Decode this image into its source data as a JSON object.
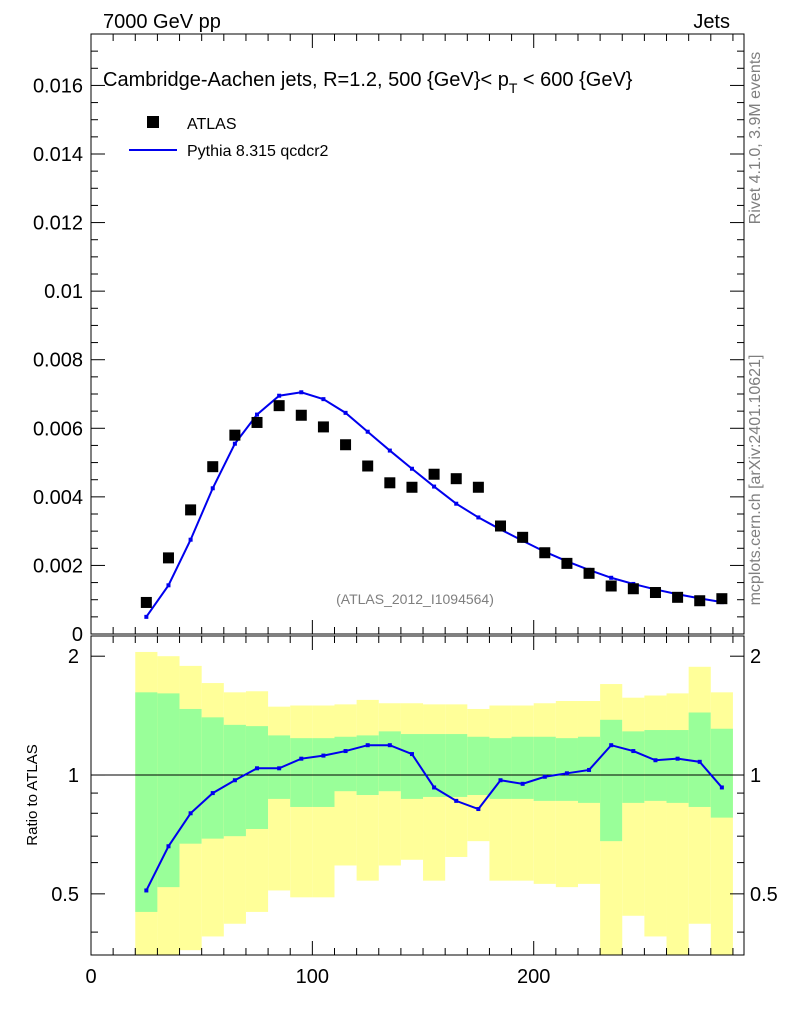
{
  "header": {
    "left": "7000 GeV pp",
    "right": "Jets"
  },
  "side": {
    "rivet": "Rivet 4.1.0,  3.9M events",
    "mcplots": "mcplots.cern.ch [arXiv:2401.10621]"
  },
  "colors": {
    "data": "#000000",
    "mc": "#0000ee",
    "band_inner": "#99ff99",
    "band_outer": "#ffff99"
  },
  "chart_data": {
    "type": "line",
    "title_main": "Cambridge-Aachen jets, R=1.2, 500 {GeV}< p",
    "title_sub": "T",
    "title_end": " < 600 {GeV}",
    "watermark": "(ATLAS_2012_I1094564)",
    "legend": {
      "data": "ATLAS",
      "mc": "Pythia 8.315 qcdcr2",
      "position": "top-left"
    },
    "xlim": [
      0,
      295
    ],
    "ylim": [
      0,
      0.0175
    ],
    "ytick_values": [
      0,
      0.002,
      0.004,
      0.006,
      0.008,
      0.01,
      0.012,
      0.014,
      0.016
    ],
    "ytick_labels": [
      "0",
      "0.002",
      "0.004",
      "0.006",
      "0.008",
      "0.01",
      "0.012",
      "0.014",
      "0.016"
    ],
    "xtick_values": [
      0,
      100,
      200
    ],
    "xtick_labels": [
      "0",
      "100",
      "200"
    ],
    "ratio": {
      "ylabel": "Ratio to ATLAS",
      "ylim": [
        0.35,
        2.25
      ],
      "ytick_values": [
        0.5,
        1,
        2
      ],
      "ytick_labels": [
        "0.5",
        "1",
        "2"
      ]
    },
    "x": [
      25,
      35,
      45,
      55,
      65,
      75,
      85,
      95,
      105,
      115,
      125,
      135,
      145,
      155,
      165,
      175,
      185,
      195,
      205,
      215,
      225,
      235,
      245,
      255,
      265,
      275,
      285
    ],
    "series": [
      {
        "name": "ATLAS",
        "values": [
          0.00092,
          0.00222,
          0.00362,
          0.00488,
          0.0058,
          0.00617,
          0.00666,
          0.00638,
          0.00604,
          0.00552,
          0.0049,
          0.00441,
          0.00428,
          0.00466,
          0.00453,
          0.00428,
          0.00315,
          0.00282,
          0.00237,
          0.00206,
          0.00177,
          0.0014,
          0.00132,
          0.00121,
          0.00107,
          0.00097,
          0.00103
        ]
      },
      {
        "name": "Pythia 8.315 qcdcr2",
        "values": [
          0.0005,
          0.00142,
          0.00275,
          0.00425,
          0.00555,
          0.0064,
          0.00695,
          0.00705,
          0.00685,
          0.00645,
          0.0059,
          0.00535,
          0.00482,
          0.0043,
          0.0038,
          0.0034,
          0.00305,
          0.00272,
          0.0024,
          0.00212,
          0.00187,
          0.00164,
          0.00146,
          0.0013,
          0.00116,
          0.00104,
          0.00093
        ]
      }
    ],
    "ratio_values": [
      0.51,
      0.66,
      0.8,
      0.9,
      0.97,
      1.04,
      1.04,
      1.1,
      1.12,
      1.15,
      1.19,
      1.19,
      1.13,
      0.93,
      0.86,
      0.82,
      0.97,
      0.95,
      0.99,
      1.01,
      1.03,
      1.19,
      1.15,
      1.09,
      1.1,
      1.08,
      0.93
    ],
    "band_inner": {
      "lo": [
        0.45,
        0.52,
        0.67,
        0.69,
        0.7,
        0.73,
        0.87,
        0.83,
        0.83,
        0.91,
        0.89,
        0.91,
        0.87,
        0.88,
        0.88,
        0.89,
        0.87,
        0.87,
        0.86,
        0.86,
        0.85,
        0.68,
        0.85,
        0.86,
        0.85,
        0.83,
        0.78
      ],
      "hi": [
        1.62,
        1.61,
        1.47,
        1.4,
        1.34,
        1.33,
        1.26,
        1.24,
        1.24,
        1.25,
        1.26,
        1.29,
        1.27,
        1.27,
        1.27,
        1.25,
        1.24,
        1.25,
        1.25,
        1.24,
        1.25,
        1.38,
        1.29,
        1.3,
        1.3,
        1.44,
        1.31
      ]
    },
    "band_outer": {
      "lo": [
        0.0,
        0.0,
        0.36,
        0.39,
        0.42,
        0.45,
        0.51,
        0.49,
        0.49,
        0.59,
        0.54,
        0.59,
        0.61,
        0.54,
        0.62,
        0.68,
        0.54,
        0.54,
        0.53,
        0.52,
        0.53,
        0.0,
        0.44,
        0.39,
        0.0,
        0.42,
        0.34
      ],
      "hi": [
        2.05,
        2.0,
        1.89,
        1.71,
        1.62,
        1.63,
        1.49,
        1.5,
        1.5,
        1.51,
        1.55,
        1.52,
        1.52,
        1.51,
        1.51,
        1.47,
        1.5,
        1.5,
        1.52,
        1.54,
        1.54,
        1.7,
        1.57,
        1.59,
        1.61,
        1.88,
        1.62
      ]
    }
  }
}
